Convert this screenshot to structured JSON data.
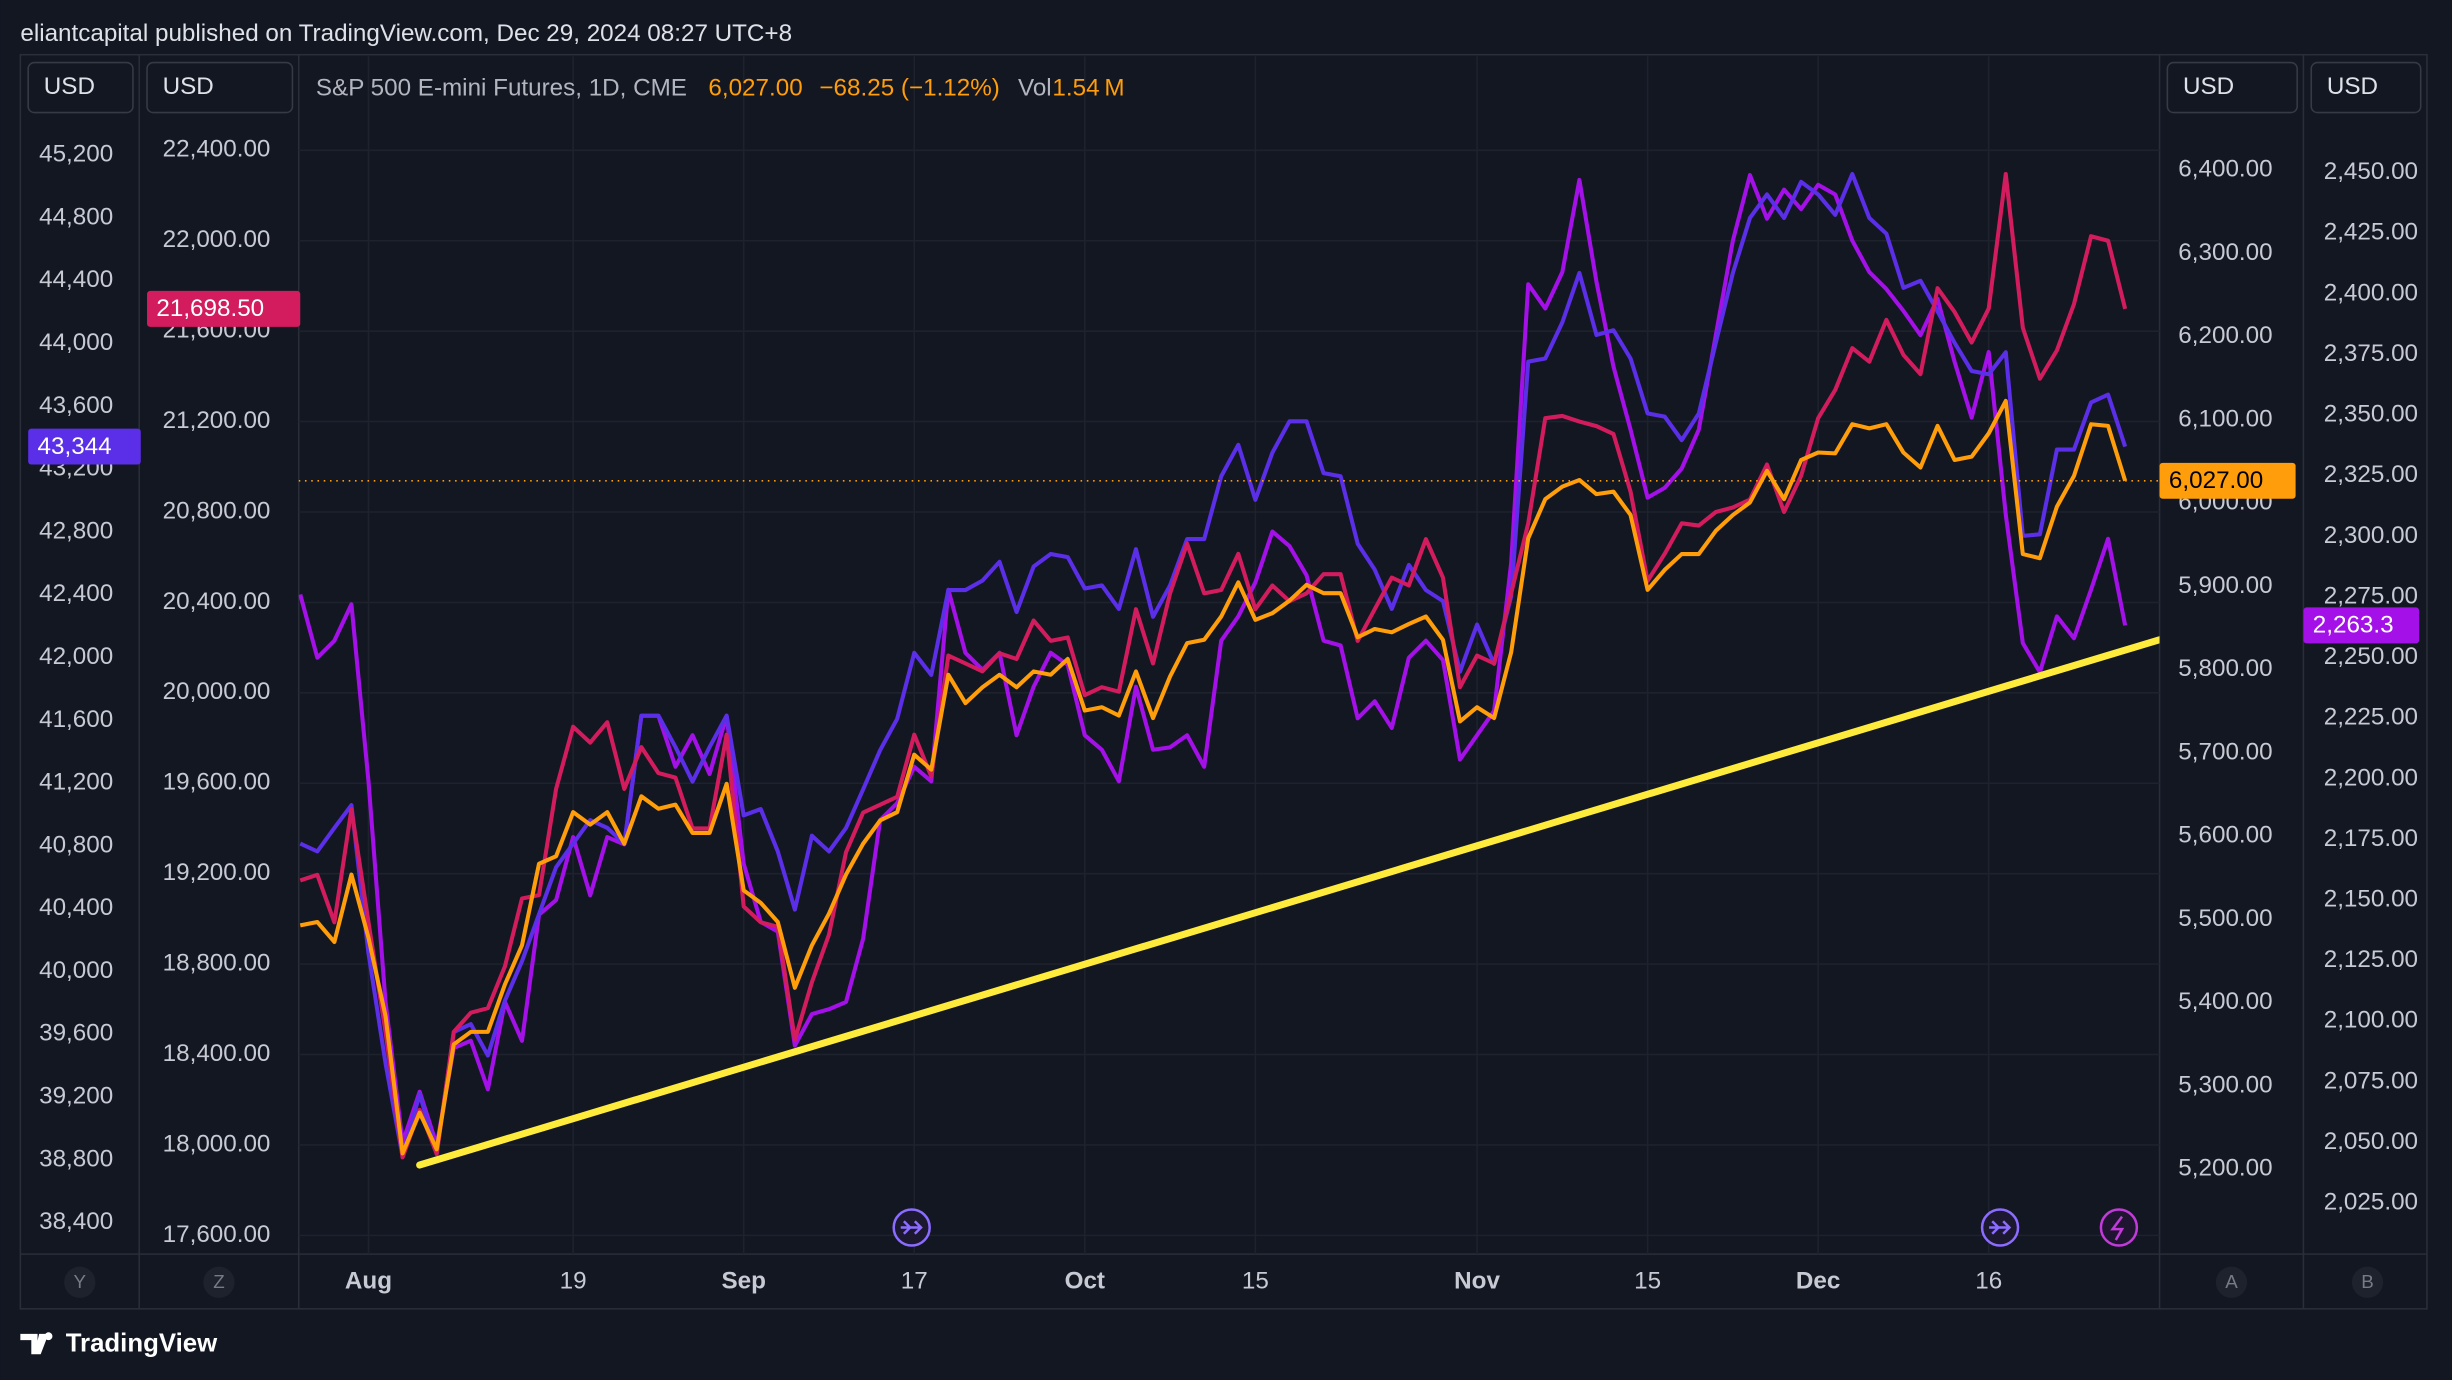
{
  "header": "eliantcapital published on TradingView.com, Dec 29, 2024 08:27 UTC+8",
  "footer": "TradingView",
  "chart_data": {
    "type": "line",
    "categories": [
      null,
      null,
      null,
      null,
      "Aug",
      null,
      null,
      null,
      null,
      null,
      null,
      null,
      null,
      null,
      null,
      null,
      "19",
      null,
      null,
      null,
      null,
      null,
      null,
      null,
      null,
      null,
      "Sep",
      null,
      null,
      null,
      null,
      null,
      null,
      null,
      null,
      null,
      "17",
      null,
      null,
      null,
      null,
      null,
      null,
      null,
      null,
      null,
      "Oct",
      null,
      null,
      null,
      null,
      null,
      null,
      null,
      null,
      null,
      "15",
      null,
      null,
      null,
      null,
      null,
      null,
      null,
      null,
      null,
      null,
      null,
      null,
      "Nov",
      null,
      null,
      null,
      null,
      null,
      null,
      null,
      null,
      null,
      "15",
      null,
      null,
      null,
      null,
      null,
      null,
      null,
      null,
      null,
      "Dec",
      null,
      null,
      null,
      null,
      null,
      null,
      null,
      null,
      null,
      "16",
      null,
      null,
      null,
      null,
      null,
      null,
      null,
      null
    ],
    "axes": [
      {
        "id": "Y",
        "unit": "USD",
        "lim": [
          38200,
          45830
        ],
        "ticks": [
          {
            "value": 45200,
            "label": "45,200"
          },
          {
            "value": 44800,
            "label": "44,800"
          },
          {
            "value": 44400,
            "label": "44,400"
          },
          {
            "value": 44000,
            "label": "44,000"
          },
          {
            "value": 43600,
            "label": "43,600"
          },
          {
            "value": 43200,
            "label": "43,200"
          },
          {
            "value": 42800,
            "label": "42,800"
          },
          {
            "value": 42400,
            "label": "42,400"
          },
          {
            "value": 42000,
            "label": "42,000"
          },
          {
            "value": 41600,
            "label": "41,600"
          },
          {
            "value": 41200,
            "label": "41,200"
          },
          {
            "value": 40800,
            "label": "40,800"
          },
          {
            "value": 40400,
            "label": "40,400"
          },
          {
            "value": 40000,
            "label": "40,000"
          },
          {
            "value": 39600,
            "label": "39,600"
          },
          {
            "value": 39200,
            "label": "39,200"
          },
          {
            "value": 38800,
            "label": "38,800"
          },
          {
            "value": 38400,
            "label": "38,400"
          }
        ]
      },
      {
        "id": "Z",
        "unit": "USD",
        "lim": [
          17517,
          22816
        ],
        "grid": true,
        "ticks": [
          {
            "value": 22400,
            "label": "22,400.00"
          },
          {
            "value": 22000,
            "label": "22,000.00"
          },
          {
            "value": 21600,
            "label": "21,600.00"
          },
          {
            "value": 21200,
            "label": "21,200.00"
          },
          {
            "value": 20800,
            "label": "20,800.00"
          },
          {
            "value": 20400,
            "label": "20,400.00"
          },
          {
            "value": 20000,
            "label": "20,000.00"
          },
          {
            "value": 19600,
            "label": "19,600.00"
          },
          {
            "value": 19200,
            "label": "19,200.00"
          },
          {
            "value": 18800,
            "label": "18,800.00"
          },
          {
            "value": 18400,
            "label": "18,400.00"
          },
          {
            "value": 18000,
            "label": "18,000.00"
          },
          {
            "value": 17600,
            "label": "17,600.00"
          }
        ]
      },
      {
        "id": "A",
        "unit": "USD",
        "lim": [
          5098,
          6537
        ],
        "ticks": [
          {
            "value": 6400,
            "label": "6,400.00"
          },
          {
            "value": 6300,
            "label": "6,300.00"
          },
          {
            "value": 6200,
            "label": "6,200.00"
          },
          {
            "value": 6100,
            "label": "6,100.00"
          },
          {
            "value": 6000,
            "label": "6,000.00"
          },
          {
            "value": 5900,
            "label": "5,900.00"
          },
          {
            "value": 5800,
            "label": "5,800.00"
          },
          {
            "value": 5700,
            "label": "5,700.00"
          },
          {
            "value": 5600,
            "label": "5,600.00"
          },
          {
            "value": 5500,
            "label": "5,500.00"
          },
          {
            "value": 5400,
            "label": "5,400.00"
          },
          {
            "value": 5300,
            "label": "5,300.00"
          },
          {
            "value": 5200,
            "label": "5,200.00"
          }
        ]
      },
      {
        "id": "B",
        "unit": "USD",
        "lim": [
          2004,
          2498
        ],
        "ticks": [
          {
            "value": 2450,
            "label": "2,450.00"
          },
          {
            "value": 2425,
            "label": "2,425.00"
          },
          {
            "value": 2400,
            "label": "2,400.00"
          },
          {
            "value": 2375,
            "label": "2,375.00"
          },
          {
            "value": 2350,
            "label": "2,350.00"
          },
          {
            "value": 2325,
            "label": "2,325.00"
          },
          {
            "value": 2300,
            "label": "2,300.00"
          },
          {
            "value": 2275,
            "label": "2,275.00"
          },
          {
            "value": 2250,
            "label": "2,250.00"
          },
          {
            "value": 2225,
            "label": "2,225.00"
          },
          {
            "value": 2200,
            "label": "2,200.00"
          },
          {
            "value": 2175,
            "label": "2,175.00"
          },
          {
            "value": 2150,
            "label": "2,150.00"
          },
          {
            "value": 2125,
            "label": "2,125.00"
          },
          {
            "value": 2100,
            "label": "2,100.00"
          },
          {
            "value": 2075,
            "label": "2,075.00"
          },
          {
            "value": 2050,
            "label": "2,050.00"
          },
          {
            "value": 2025,
            "label": "2,025.00"
          }
        ]
      }
    ],
    "series": [
      {
        "name": "S&P 500 E-mini Futures, 1D, CME",
        "color": "#ff9d0a",
        "axis": "A",
        "last_value_label": "6,027.00",
        "change": "−68.25 (−1.12%)",
        "volume_label": "Vol",
        "volume": "1.54 M",
        "values": [
          5493,
          5497,
          5473,
          5554,
          5478,
          5384,
          5219,
          5268,
          5224,
          5350,
          5365,
          5365,
          5422,
          5469,
          5567,
          5576,
          5629,
          5614,
          5629,
          5591,
          5648,
          5633,
          5638,
          5604,
          5604,
          5663,
          5535,
          5520,
          5497,
          5418,
          5469,
          5507,
          5554,
          5591,
          5619,
          5629,
          5698,
          5680,
          5794,
          5760,
          5779,
          5794,
          5779,
          5798,
          5794,
          5813,
          5751,
          5755,
          5745,
          5798,
          5742,
          5792,
          5832,
          5836,
          5864,
          5905,
          5860,
          5868,
          5883,
          5902,
          5892,
          5892,
          5839,
          5849,
          5845,
          5855,
          5864,
          5836,
          5738,
          5755,
          5742,
          5821,
          5958,
          6005,
          6020,
          6028,
          6011,
          6014,
          5986,
          5896,
          5920,
          5939,
          5939,
          5967,
          5986,
          6001,
          6039,
          6005,
          6052,
          6061,
          6060,
          6095,
          6090,
          6095,
          6061,
          6043,
          6093,
          6052,
          6056,
          6084,
          6123,
          5939,
          5934,
          5996,
          6033,
          6095,
          6093,
          6027
        ]
      },
      {
        "color": "#d21c5e",
        "axis": "Z",
        "last_value_label": "21,698.50",
        "values": [
          19170,
          19195,
          18985,
          19485,
          18985,
          18500,
          17945,
          18155,
          17960,
          18500,
          18585,
          18605,
          18790,
          19090,
          19105,
          19575,
          19850,
          19780,
          19870,
          19575,
          19760,
          19645,
          19625,
          19400,
          19400,
          19815,
          19055,
          18985,
          18965,
          18465,
          18720,
          18930,
          19295,
          19470,
          19505,
          19540,
          19815,
          19630,
          20165,
          20130,
          20095,
          20175,
          20150,
          20320,
          20230,
          20245,
          19990,
          20025,
          20005,
          20370,
          20130,
          20440,
          20660,
          20440,
          20455,
          20615,
          20370,
          20475,
          20405,
          20440,
          20525,
          20525,
          20230,
          20370,
          20510,
          20475,
          20680,
          20510,
          20025,
          20165,
          20130,
          20440,
          20750,
          21215,
          21225,
          21200,
          21180,
          21145,
          20890,
          20495,
          20615,
          20750,
          20740,
          20800,
          20820,
          20855,
          21010,
          20800,
          20960,
          21215,
          21340,
          21525,
          21465,
          21650,
          21495,
          21410,
          21790,
          21685,
          21550,
          21700,
          22295,
          21615,
          21390,
          21515,
          21720,
          22020,
          22000,
          21698.5
        ]
      },
      {
        "color": "#5b2ee8",
        "axis": "Y",
        "last_value_label": "43,344",
        "values": [
          40815,
          40765,
          40915,
          41060,
          40115,
          39415,
          38820,
          39220,
          38840,
          39615,
          39665,
          39465,
          39815,
          40065,
          40365,
          40665,
          40815,
          40965,
          40915,
          40815,
          41630,
          41630,
          41430,
          41210,
          41430,
          41630,
          40995,
          41035,
          40765,
          40395,
          40865,
          40765,
          40915,
          41160,
          41410,
          41610,
          42030,
          41890,
          42430,
          42430,
          42490,
          42610,
          42290,
          42580,
          42660,
          42640,
          42440,
          42460,
          42310,
          42690,
          42260,
          42460,
          42755,
          42755,
          43155,
          43355,
          43005,
          43305,
          43505,
          43505,
          43175,
          43155,
          42725,
          42560,
          42310,
          42590,
          42430,
          42360,
          41910,
          42210,
          41960,
          42390,
          43885,
          43905,
          44135,
          44450,
          44055,
          44085,
          43905,
          43555,
          43535,
          43385,
          43555,
          44005,
          44450,
          44800,
          44950,
          44800,
          45030,
          44950,
          44820,
          45080,
          44800,
          44700,
          44355,
          44400,
          44205,
          44005,
          43825,
          43805,
          43945,
          42775,
          42785,
          43325,
          43325,
          43625,
          43675,
          43344
        ]
      },
      {
        "color": "#a410e8",
        "axis": "B",
        "last_value_label": "2,263.3",
        "values": [
          2276,
          2250,
          2257,
          2272,
          2199,
          2108,
          2050,
          2071,
          2049,
          2089,
          2092,
          2072,
          2108,
          2092,
          2144,
          2150,
          2176,
          2152,
          2176,
          2173,
          2226,
          2226,
          2205,
          2218,
          2202,
          2226,
          2165,
          2141,
          2137,
          2090,
          2103,
          2105,
          2108,
          2134,
          2183,
          2190,
          2205,
          2199,
          2278,
          2252,
          2245,
          2252,
          2218,
          2238,
          2252,
          2247,
          2218,
          2212,
          2199,
          2238,
          2212,
          2213,
          2218,
          2205,
          2257,
          2267,
          2281,
          2302,
          2296,
          2284,
          2257,
          2255,
          2225,
          2232,
          2221,
          2250,
          2257,
          2249,
          2208,
          2218,
          2228,
          2289,
          2404,
          2394,
          2409,
          2447,
          2405,
          2370,
          2344,
          2316,
          2320,
          2328,
          2344,
          2383,
          2422,
          2449,
          2431,
          2443,
          2435,
          2445,
          2441,
          2422,
          2409,
          2402,
          2393,
          2383,
          2398,
          2372,
          2349,
          2376,
          2309,
          2256,
          2244,
          2267,
          2258,
          2278,
          2299,
          2263.3
        ]
      }
    ],
    "trendline": {
      "axis": "A",
      "color": "#ffeb3b",
      "start": [
        7,
        5205
      ],
      "end": [
        109,
        5836
      ]
    }
  }
}
